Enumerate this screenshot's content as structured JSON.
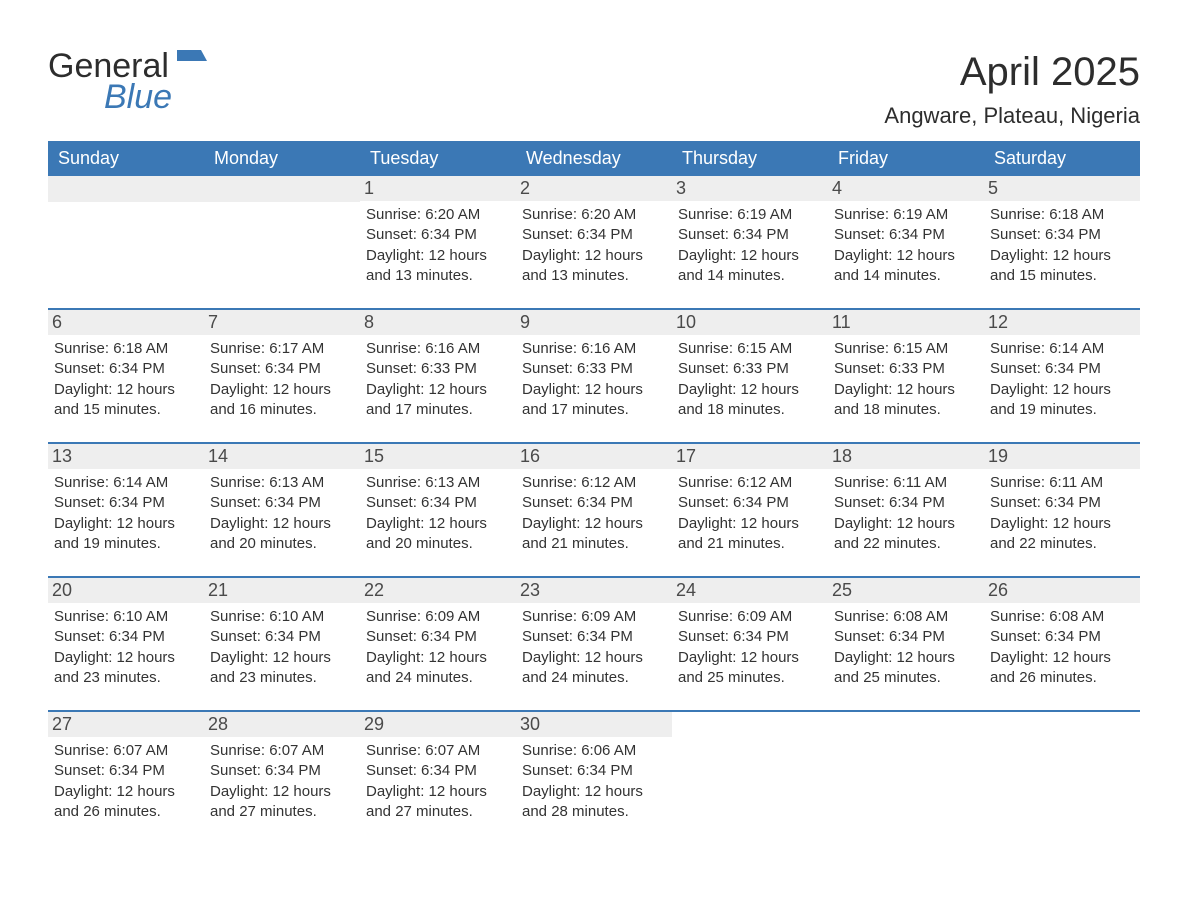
{
  "logo": {
    "word1": "General",
    "word2": "Blue"
  },
  "title": "April 2025",
  "location": "Angware, Plateau, Nigeria",
  "colors": {
    "header_bg": "#3b78b5",
    "header_text": "#ffffff",
    "daynum_bg": "#eeeeee",
    "body_text": "#333333",
    "title_text": "#2d2d2d",
    "background": "#ffffff",
    "row_border": "#3b78b5",
    "logo_blue": "#3b78b5"
  },
  "typography": {
    "title_fontsize": 40,
    "location_fontsize": 22,
    "day_header_fontsize": 18,
    "daynum_fontsize": 18,
    "content_fontsize": 15
  },
  "layout": {
    "columns": 7,
    "rows": 5,
    "cell_min_height": 118
  },
  "day_headers": [
    "Sunday",
    "Monday",
    "Tuesday",
    "Wednesday",
    "Thursday",
    "Friday",
    "Saturday"
  ],
  "weeks": [
    [
      {
        "empty": true
      },
      {
        "empty": true
      },
      {
        "num": "1",
        "sunrise": "Sunrise: 6:20 AM",
        "sunset": "Sunset: 6:34 PM",
        "daylight": "Daylight: 12 hours and 13 minutes."
      },
      {
        "num": "2",
        "sunrise": "Sunrise: 6:20 AM",
        "sunset": "Sunset: 6:34 PM",
        "daylight": "Daylight: 12 hours and 13 minutes."
      },
      {
        "num": "3",
        "sunrise": "Sunrise: 6:19 AM",
        "sunset": "Sunset: 6:34 PM",
        "daylight": "Daylight: 12 hours and 14 minutes."
      },
      {
        "num": "4",
        "sunrise": "Sunrise: 6:19 AM",
        "sunset": "Sunset: 6:34 PM",
        "daylight": "Daylight: 12 hours and 14 minutes."
      },
      {
        "num": "5",
        "sunrise": "Sunrise: 6:18 AM",
        "sunset": "Sunset: 6:34 PM",
        "daylight": "Daylight: 12 hours and 15 minutes."
      }
    ],
    [
      {
        "num": "6",
        "sunrise": "Sunrise: 6:18 AM",
        "sunset": "Sunset: 6:34 PM",
        "daylight": "Daylight: 12 hours and 15 minutes."
      },
      {
        "num": "7",
        "sunrise": "Sunrise: 6:17 AM",
        "sunset": "Sunset: 6:34 PM",
        "daylight": "Daylight: 12 hours and 16 minutes."
      },
      {
        "num": "8",
        "sunrise": "Sunrise: 6:16 AM",
        "sunset": "Sunset: 6:33 PM",
        "daylight": "Daylight: 12 hours and 17 minutes."
      },
      {
        "num": "9",
        "sunrise": "Sunrise: 6:16 AM",
        "sunset": "Sunset: 6:33 PM",
        "daylight": "Daylight: 12 hours and 17 minutes."
      },
      {
        "num": "10",
        "sunrise": "Sunrise: 6:15 AM",
        "sunset": "Sunset: 6:33 PM",
        "daylight": "Daylight: 12 hours and 18 minutes."
      },
      {
        "num": "11",
        "sunrise": "Sunrise: 6:15 AM",
        "sunset": "Sunset: 6:33 PM",
        "daylight": "Daylight: 12 hours and 18 minutes."
      },
      {
        "num": "12",
        "sunrise": "Sunrise: 6:14 AM",
        "sunset": "Sunset: 6:34 PM",
        "daylight": "Daylight: 12 hours and 19 minutes."
      }
    ],
    [
      {
        "num": "13",
        "sunrise": "Sunrise: 6:14 AM",
        "sunset": "Sunset: 6:34 PM",
        "daylight": "Daylight: 12 hours and 19 minutes."
      },
      {
        "num": "14",
        "sunrise": "Sunrise: 6:13 AM",
        "sunset": "Sunset: 6:34 PM",
        "daylight": "Daylight: 12 hours and 20 minutes."
      },
      {
        "num": "15",
        "sunrise": "Sunrise: 6:13 AM",
        "sunset": "Sunset: 6:34 PM",
        "daylight": "Daylight: 12 hours and 20 minutes."
      },
      {
        "num": "16",
        "sunrise": "Sunrise: 6:12 AM",
        "sunset": "Sunset: 6:34 PM",
        "daylight": "Daylight: 12 hours and 21 minutes."
      },
      {
        "num": "17",
        "sunrise": "Sunrise: 6:12 AM",
        "sunset": "Sunset: 6:34 PM",
        "daylight": "Daylight: 12 hours and 21 minutes."
      },
      {
        "num": "18",
        "sunrise": "Sunrise: 6:11 AM",
        "sunset": "Sunset: 6:34 PM",
        "daylight": "Daylight: 12 hours and 22 minutes."
      },
      {
        "num": "19",
        "sunrise": "Sunrise: 6:11 AM",
        "sunset": "Sunset: 6:34 PM",
        "daylight": "Daylight: 12 hours and 22 minutes."
      }
    ],
    [
      {
        "num": "20",
        "sunrise": "Sunrise: 6:10 AM",
        "sunset": "Sunset: 6:34 PM",
        "daylight": "Daylight: 12 hours and 23 minutes."
      },
      {
        "num": "21",
        "sunrise": "Sunrise: 6:10 AM",
        "sunset": "Sunset: 6:34 PM",
        "daylight": "Daylight: 12 hours and 23 minutes."
      },
      {
        "num": "22",
        "sunrise": "Sunrise: 6:09 AM",
        "sunset": "Sunset: 6:34 PM",
        "daylight": "Daylight: 12 hours and 24 minutes."
      },
      {
        "num": "23",
        "sunrise": "Sunrise: 6:09 AM",
        "sunset": "Sunset: 6:34 PM",
        "daylight": "Daylight: 12 hours and 24 minutes."
      },
      {
        "num": "24",
        "sunrise": "Sunrise: 6:09 AM",
        "sunset": "Sunset: 6:34 PM",
        "daylight": "Daylight: 12 hours and 25 minutes."
      },
      {
        "num": "25",
        "sunrise": "Sunrise: 6:08 AM",
        "sunset": "Sunset: 6:34 PM",
        "daylight": "Daylight: 12 hours and 25 minutes."
      },
      {
        "num": "26",
        "sunrise": "Sunrise: 6:08 AM",
        "sunset": "Sunset: 6:34 PM",
        "daylight": "Daylight: 12 hours and 26 minutes."
      }
    ],
    [
      {
        "num": "27",
        "sunrise": "Sunrise: 6:07 AM",
        "sunset": "Sunset: 6:34 PM",
        "daylight": "Daylight: 12 hours and 26 minutes."
      },
      {
        "num": "28",
        "sunrise": "Sunrise: 6:07 AM",
        "sunset": "Sunset: 6:34 PM",
        "daylight": "Daylight: 12 hours and 27 minutes."
      },
      {
        "num": "29",
        "sunrise": "Sunrise: 6:07 AM",
        "sunset": "Sunset: 6:34 PM",
        "daylight": "Daylight: 12 hours and 27 minutes."
      },
      {
        "num": "30",
        "sunrise": "Sunrise: 6:06 AM",
        "sunset": "Sunset: 6:34 PM",
        "daylight": "Daylight: 12 hours and 28 minutes."
      },
      {
        "empty": true,
        "nobar": true
      },
      {
        "empty": true,
        "nobar": true
      },
      {
        "empty": true,
        "nobar": true
      }
    ]
  ]
}
